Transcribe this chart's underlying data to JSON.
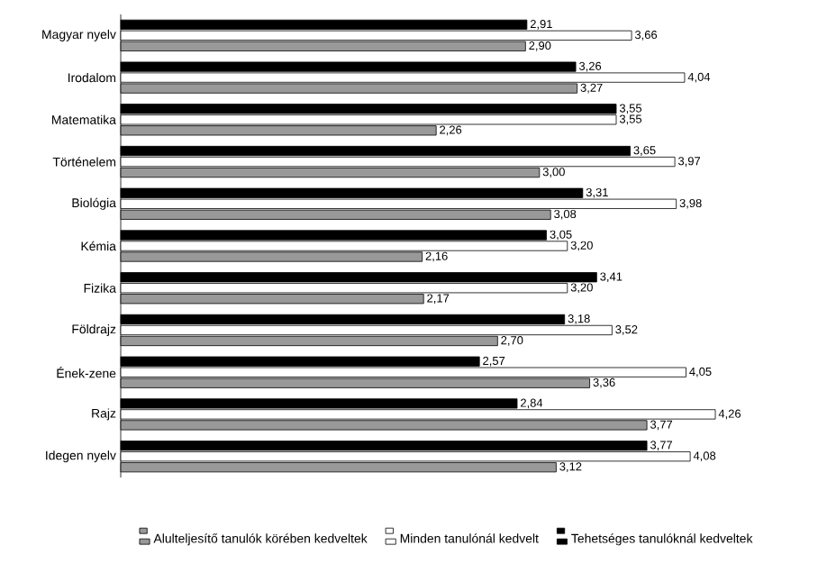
{
  "chart_data": {
    "type": "bar",
    "orientation": "horizontal",
    "categories": [
      "Magyar nyelv",
      "Irodalom",
      "Matematika",
      "Történelem",
      "Biológia",
      "Kémia",
      "Fizika",
      "Földrajz",
      "Ének-zene",
      "Rajz",
      "Idegen nyelv"
    ],
    "series": [
      {
        "name": "Alulteljesítő tanulók körében kedveltek",
        "color": "#999999",
        "values": [
          2.9,
          3.27,
          2.26,
          3.0,
          3.08,
          2.16,
          2.17,
          2.7,
          3.36,
          3.77,
          3.12
        ],
        "value_labels": [
          "2,90",
          "3,27",
          "2,26",
          "3,00",
          "3,08",
          "2,16",
          "2,17",
          "2,70",
          "3,36",
          "3,77",
          "3,12"
        ]
      },
      {
        "name": "Minden tanulónál kedvelt",
        "color": "#ffffff",
        "values": [
          3.66,
          4.04,
          3.55,
          3.97,
          3.98,
          3.2,
          3.2,
          3.52,
          4.05,
          4.26,
          4.08
        ],
        "value_labels": [
          "3,66",
          "4,04",
          "3,55",
          "3,97",
          "3,98",
          "3,20",
          "3,20",
          "3,52",
          "4,05",
          "4,26",
          "4,08"
        ]
      },
      {
        "name": "Tehetséges tanulóknál kedveltek",
        "color": "#000000",
        "values": [
          2.91,
          3.26,
          3.55,
          3.65,
          3.31,
          3.05,
          3.41,
          3.18,
          2.57,
          2.84,
          3.77
        ],
        "value_labels": [
          "2,91",
          "3,26",
          "3,55",
          "3,65",
          "3,31",
          "3,05",
          "3,41",
          "3,18",
          "2,57",
          "2,84",
          "3,77"
        ]
      }
    ],
    "legend": "bottom"
  }
}
